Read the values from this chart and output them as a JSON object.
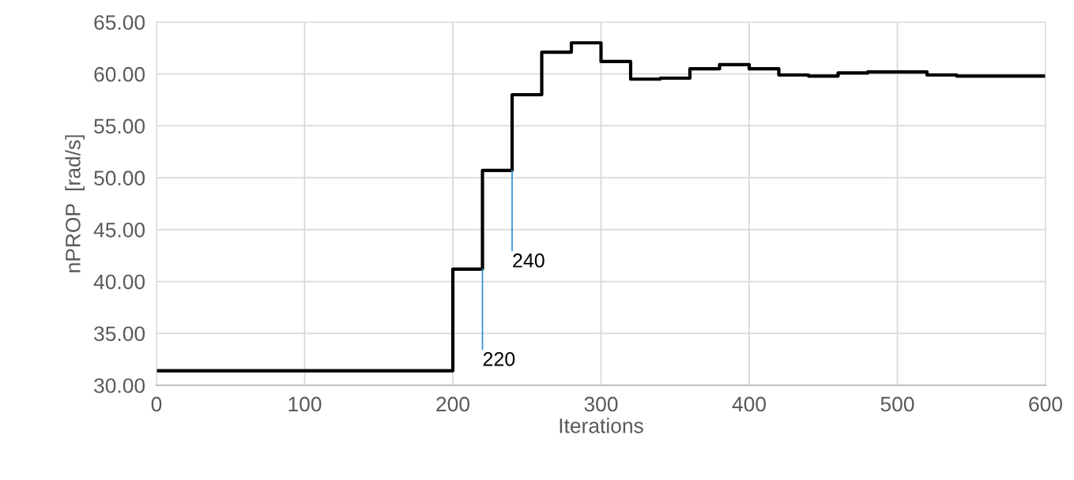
{
  "chart_data": {
    "type": "step",
    "xlabel": "Iterations",
    "ylabel": "nPROP  [rad/s]",
    "x": [
      0,
      200,
      220,
      240,
      260,
      280,
      300,
      320,
      340,
      360,
      380,
      400,
      420,
      440,
      460,
      480,
      500,
      520,
      540,
      600
    ],
    "series": [
      {
        "color": "#000000",
        "values": [
          31.4,
          41.2,
          50.7,
          58.0,
          62.1,
          63.0,
          61.2,
          59.5,
          59.6,
          60.5,
          60.9,
          60.5,
          59.9,
          59.8,
          60.1,
          60.2,
          60.2,
          59.9,
          59.8,
          59.8
        ]
      }
    ],
    "annotations": [
      {
        "text": "220",
        "x": 220,
        "y": 41.2
      },
      {
        "text": "240",
        "x": 240,
        "y": 50.7
      }
    ],
    "xlim": [
      0,
      600
    ],
    "xticks": [
      0,
      100,
      200,
      300,
      400,
      500,
      600
    ],
    "ylim": [
      30,
      65
    ],
    "yticks": [
      {
        "value": 30,
        "label": "30.00"
      },
      {
        "value": 35,
        "label": "35.00"
      },
      {
        "value": 40,
        "label": "40.00"
      },
      {
        "value": 45,
        "label": "45.00"
      },
      {
        "value": 50,
        "label": "50.00"
      },
      {
        "value": 55,
        "label": "55.00"
      },
      {
        "value": 60,
        "label": "60.00"
      },
      {
        "value": 65,
        "label": "65.00"
      }
    ],
    "grid": true
  }
}
